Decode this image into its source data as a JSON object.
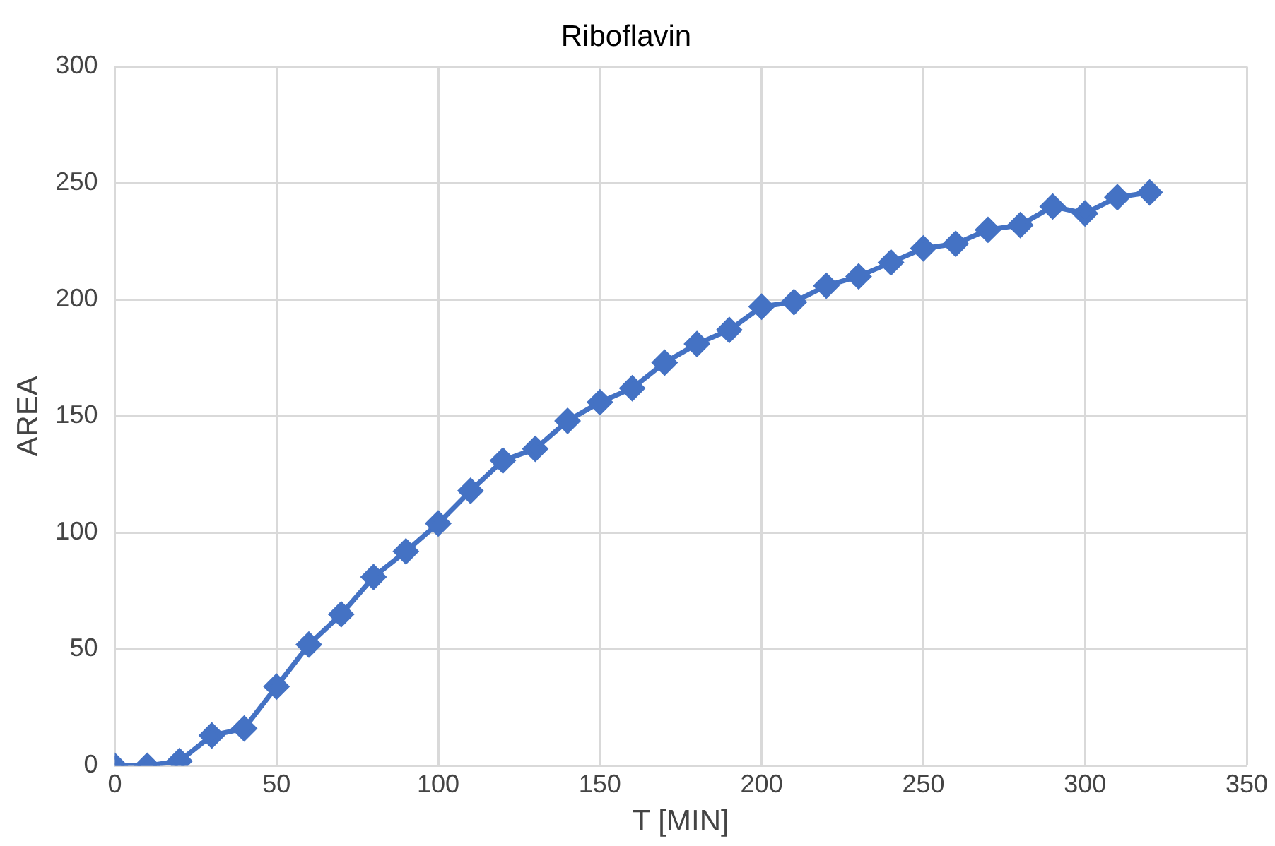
{
  "chart_data": {
    "type": "line",
    "title": "Riboflavin",
    "xlabel": "T [MIN]",
    "ylabel": "AREA",
    "x": [
      0,
      10,
      20,
      30,
      40,
      50,
      60,
      70,
      80,
      90,
      100,
      110,
      120,
      130,
      140,
      150,
      160,
      170,
      180,
      190,
      200,
      210,
      220,
      230,
      240,
      250,
      260,
      270,
      280,
      290,
      300,
      310,
      320
    ],
    "series": [
      {
        "color": "#4472c4",
        "values": [
          0,
          0,
          2,
          13,
          16,
          34,
          52,
          65,
          81,
          92,
          104,
          118,
          131,
          136,
          148,
          156,
          162,
          173,
          181,
          187,
          197,
          199,
          206,
          210,
          216,
          222,
          224,
          230,
          232,
          240,
          237,
          244,
          246
        ]
      }
    ],
    "xlim": [
      0,
      350
    ],
    "xticks": [
      0,
      50,
      100,
      150,
      200,
      250,
      300,
      350
    ],
    "ylim": [
      0,
      300
    ],
    "yticks": [
      0,
      50,
      100,
      150,
      200,
      250,
      300
    ],
    "grid": true,
    "legend": false,
    "marker": "diamond",
    "line_style": "solid"
  }
}
